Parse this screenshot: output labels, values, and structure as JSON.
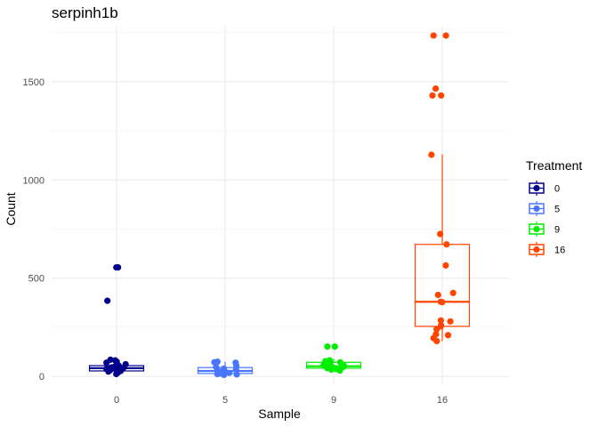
{
  "chart_data": {
    "type": "box",
    "title": "serpinh1b",
    "xlabel": "Sample",
    "ylabel": "Count",
    "ylim": [
      -40,
      1780
    ],
    "y_ticks": [
      0,
      500,
      1000,
      1500
    ],
    "grid": true,
    "legend": {
      "title": "Treatment",
      "position": "right"
    },
    "categories": [
      "0",
      "5",
      "9",
      "16"
    ],
    "series": [
      {
        "name": "0",
        "color": "#00008b",
        "box": {
          "q1": 28,
          "median": 42,
          "q3": 55,
          "whisker_low": 5,
          "whisker_high": 90
        },
        "points": [
          555,
          555,
          385,
          85,
          82,
          75,
          70,
          62,
          55,
          50,
          46,
          43,
          40,
          38,
          35,
          32,
          28,
          25,
          20,
          12
        ]
      },
      {
        "name": "5",
        "color": "#4876ff",
        "box": {
          "q1": 15,
          "median": 28,
          "q3": 45,
          "whisker_low": 5,
          "whisker_high": 75
        },
        "points": [
          75,
          72,
          70,
          55,
          48,
          40,
          35,
          30,
          25,
          20,
          18,
          15,
          12,
          10,
          8
        ]
      },
      {
        "name": "9",
        "color": "#00ee00",
        "box": {
          "q1": 42,
          "median": 52,
          "q3": 72,
          "whisker_low": 28,
          "whisker_high": 90
        },
        "points": [
          152,
          152,
          82,
          78,
          72,
          68,
          62,
          58,
          55,
          52,
          48,
          45,
          42,
          38,
          35,
          30
        ]
      },
      {
        "name": "16",
        "color": "#ff4500",
        "box": {
          "q1": 255,
          "median": 380,
          "q3": 672,
          "whisker_low": 180,
          "whisker_high": 1130
        },
        "points": [
          1735,
          1735,
          1465,
          1430,
          1430,
          1128,
          725,
          672,
          565,
          425,
          415,
          380,
          378,
          285,
          280,
          260,
          255,
          240,
          215,
          210,
          195,
          180
        ]
      }
    ]
  }
}
